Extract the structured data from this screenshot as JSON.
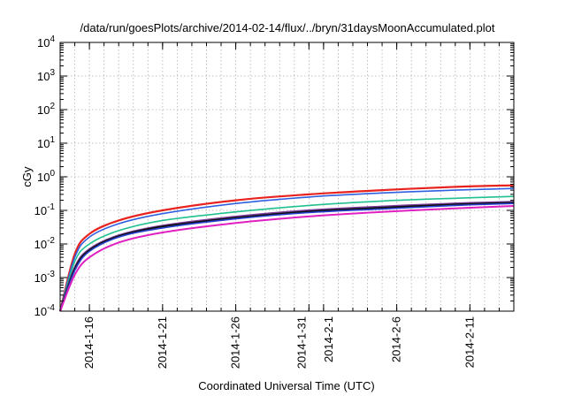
{
  "chart_data": {
    "type": "line",
    "title": "/data/run/goesPlots/archive/2014-02-14/flux/../bryn/31daysMoonAccumulated.plot",
    "xlabel": "Coordinated Universal Time (UTC)",
    "ylabel": "cGy",
    "yscale": "log",
    "ylim": [
      0.0001,
      10000
    ],
    "xlim": [
      "2014-01-14",
      "2014-02-14"
    ],
    "grid": true,
    "y_ticks": [
      {
        "value": 0.0001,
        "base": "10",
        "exp": "-4"
      },
      {
        "value": 0.001,
        "base": "10",
        "exp": "-3"
      },
      {
        "value": 0.01,
        "base": "10",
        "exp": "-2"
      },
      {
        "value": 0.1,
        "base": "10",
        "exp": "-1"
      },
      {
        "value": 1,
        "base": "10",
        "exp": "0"
      },
      {
        "value": 10,
        "base": "10",
        "exp": "1"
      },
      {
        "value": 100,
        "base": "10",
        "exp": "2"
      },
      {
        "value": 1000,
        "base": "10",
        "exp": "3"
      },
      {
        "value": 10000,
        "base": "10",
        "exp": "4"
      }
    ],
    "x_ticks": [
      "2014-1-16",
      "2014-1-21",
      "2014-1-26",
      "2014-1-31",
      "2014-2-1",
      "2014-2-6",
      "2014-2-11"
    ],
    "x_tick_dates": [
      "2014-01-16",
      "2014-01-21",
      "2014-01-26",
      "2014-01-31",
      "2014-02-01",
      "2014-02-06",
      "2014-02-11"
    ],
    "x": [
      "2014-01-14",
      "2014-01-15",
      "2014-01-16",
      "2014-01-18",
      "2014-01-21",
      "2014-01-26",
      "2014-01-31",
      "2014-02-05",
      "2014-02-10",
      "2014-02-14"
    ],
    "series": [
      {
        "color": "#e8231f",
        "width": 2.2,
        "values": [
          0.0001,
          0.005,
          0.02,
          0.05,
          0.1,
          0.2,
          0.3,
          0.4,
          0.5,
          0.56
        ]
      },
      {
        "color": "#3060e0",
        "width": 1.6,
        "values": [
          0.0001,
          0.004,
          0.016,
          0.04,
          0.08,
          0.16,
          0.25,
          0.33,
          0.4,
          0.45
        ]
      },
      {
        "color": "#20c090",
        "width": 1.6,
        "values": [
          0.0001,
          0.003,
          0.01,
          0.025,
          0.05,
          0.09,
          0.14,
          0.19,
          0.23,
          0.26
        ]
      },
      {
        "color": "#7a3c9a",
        "width": 2.2,
        "values": [
          0.0001,
          0.002,
          0.007,
          0.018,
          0.035,
          0.065,
          0.1,
          0.13,
          0.16,
          0.18
        ]
      },
      {
        "color": "#101010",
        "width": 2.0,
        "values": [
          0.0001,
          0.0018,
          0.0065,
          0.017,
          0.033,
          0.06,
          0.093,
          0.12,
          0.15,
          0.17
        ]
      },
      {
        "color": "#2840d0",
        "width": 1.6,
        "values": [
          0.0001,
          0.0016,
          0.006,
          0.016,
          0.03,
          0.056,
          0.086,
          0.11,
          0.14,
          0.16
        ]
      },
      {
        "color": "#e020c0",
        "width": 2.0,
        "values": [
          0.0001,
          0.0012,
          0.004,
          0.011,
          0.022,
          0.042,
          0.066,
          0.09,
          0.115,
          0.135
        ]
      }
    ]
  }
}
